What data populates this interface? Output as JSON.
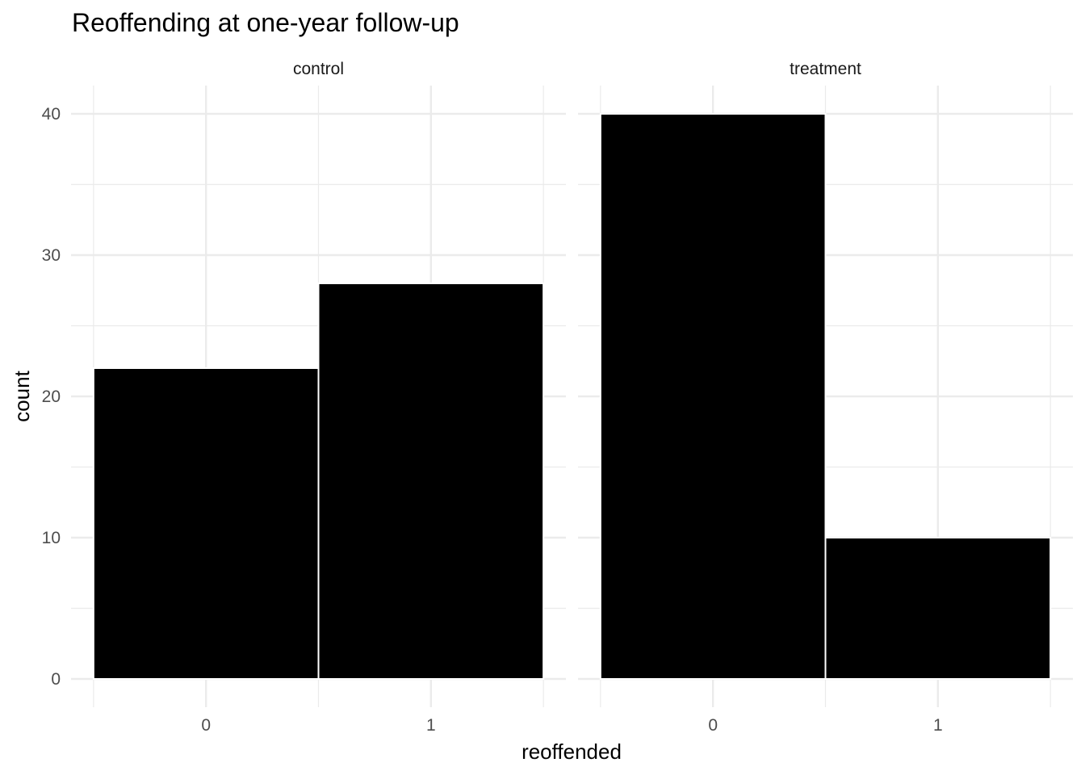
{
  "chart_data": {
    "type": "bar",
    "title": "Reoffending at one-year follow-up",
    "xlabel": "reoffended",
    "ylabel": "count",
    "categories": [
      "0",
      "1"
    ],
    "y_ticks": [
      0,
      10,
      20,
      30,
      40
    ],
    "ylim": [
      -2,
      42
    ],
    "grid": true,
    "bar_color": "#000000",
    "panels": [
      {
        "label": "control",
        "values": [
          22,
          28
        ]
      },
      {
        "label": "treatment",
        "values": [
          40,
          10
        ]
      }
    ]
  }
}
